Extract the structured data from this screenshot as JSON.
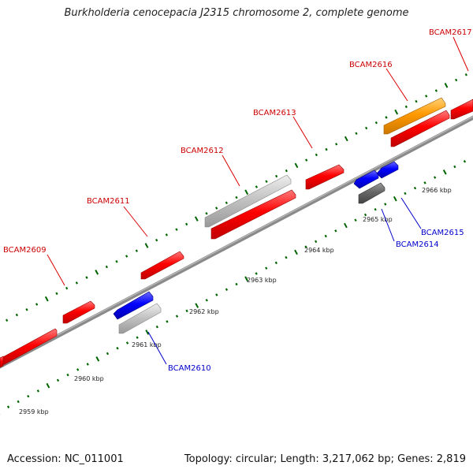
{
  "header": {
    "title": "Burkholderia cenocepacia J2315 chromosome 2, complete genome"
  },
  "footer": {
    "accession": "Accession: NC_011001",
    "summary": "Topology: circular; Length: 3,217,062 bp; Genes: 2,819"
  },
  "colors": {
    "forward_gene": "#ff0000",
    "reverse_gene": "#0000ff",
    "highlight_gene": "#ff9900",
    "pseudo_gene": "#c0c0c0",
    "dark_gene": "#666666",
    "tick": "#006400",
    "label_forward": "#cc0000",
    "label_reverse": "#0000cc",
    "backbone": "#888888"
  },
  "ruler": {
    "ticks": [
      "2959 kbp",
      "2960 kbp",
      "2961 kbp",
      "2962 kbp",
      "2963 kbp",
      "2964 kbp",
      "2965 kbp",
      "2966 kbp"
    ]
  },
  "genes": {
    "forward": [
      "BCAM2609",
      "BCAM2611",
      "BCAM2612",
      "BCAM2613",
      "BCAM2616",
      "BCAM2617"
    ],
    "reverse": [
      "BCAM2610",
      "BCAM2614",
      "BCAM2615"
    ]
  }
}
